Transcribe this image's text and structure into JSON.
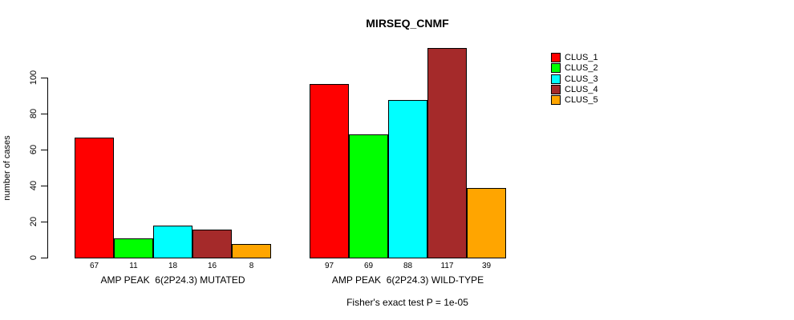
{
  "chart_data": {
    "type": "bar",
    "title": "MIRSEQ_CNMF",
    "subtitle": "Fisher's exact test P = 1e-05",
    "ylabel": "number of cases",
    "xlabel": "",
    "ylim": [
      0,
      100
    ],
    "yticks": [
      0,
      20,
      40,
      60,
      80,
      100
    ],
    "grid": false,
    "legend_position": "right-outside",
    "bar_value_labels": true,
    "categories": [
      "AMP PEAK  6(2P24.3) MUTATED",
      "AMP PEAK  6(2P24.3) WILD-TYPE"
    ],
    "series": [
      {
        "name": "CLUS_1",
        "color": "#ff0000",
        "values": [
          67,
          97
        ]
      },
      {
        "name": "CLUS_2",
        "color": "#00ff00",
        "values": [
          11,
          69
        ]
      },
      {
        "name": "CLUS_3",
        "color": "#00ffff",
        "values": [
          18,
          88
        ]
      },
      {
        "name": "CLUS_4",
        "color": "#a52a2a",
        "values": [
          16,
          117
        ]
      },
      {
        "name": "CLUS_5",
        "color": "#ffa500",
        "values": [
          8,
          39
        ]
      }
    ]
  }
}
